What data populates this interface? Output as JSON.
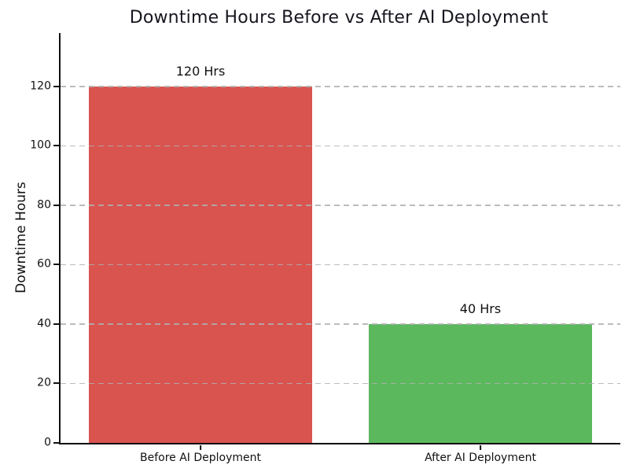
{
  "chart_data": {
    "type": "bar",
    "title": "Downtime Hours Before vs After AI Deployment",
    "ylabel": "Downtime Hours",
    "xlabel": "",
    "categories": [
      "Before AI Deployment",
      "After AI Deployment"
    ],
    "values": [
      120,
      40
    ],
    "bar_labels": [
      "120 Hrs",
      "40 Hrs"
    ],
    "bar_colors": [
      "#d9534f",
      "#5cb85c"
    ],
    "yticks": [
      0,
      20,
      40,
      60,
      80,
      100,
      120
    ],
    "ylim": [
      0,
      138
    ],
    "grid": "horizontal-dashed",
    "grid_color": "#b0b0b0",
    "spines": [
      "left",
      "bottom"
    ],
    "spine_color": "#111111",
    "title_color": "#16161f",
    "legend": "none",
    "background_color": "#ffffff"
  }
}
